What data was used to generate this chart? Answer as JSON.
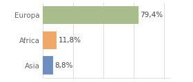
{
  "categories": [
    "Asia",
    "Africa",
    "Europa"
  ],
  "values": [
    8.8,
    11.8,
    79.4
  ],
  "colors": [
    "#6e8ebf",
    "#f0a868",
    "#a8bc8c"
  ],
  "labels": [
    "8,8%",
    "11,8%",
    "79,4%"
  ],
  "xlim": [
    0,
    105
  ],
  "background_color": "#ffffff",
  "bar_height": 0.72,
  "label_fontsize": 7.5,
  "tick_fontsize": 7.5,
  "tick_color": "#666666",
  "grid_color": "#dddddd",
  "label_color": "#444444"
}
